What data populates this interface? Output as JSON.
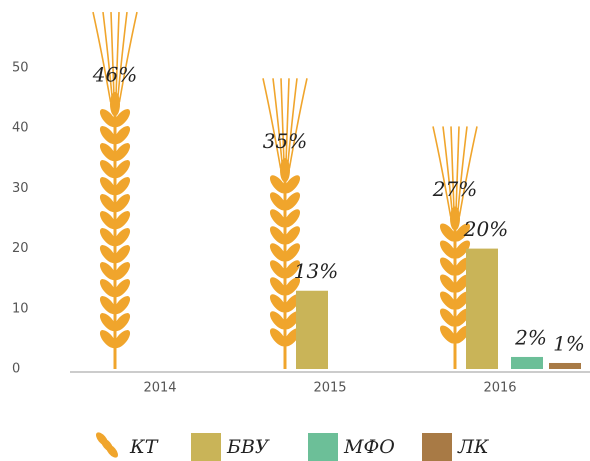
{
  "chart_data": {
    "type": "bar",
    "categories": [
      "2014",
      "2015",
      "2016"
    ],
    "series": [
      {
        "name": "КТ",
        "color": "#f0a52c",
        "values": [
          46,
          35,
          27
        ],
        "value_labels": [
          "46%",
          "35%",
          "27%"
        ]
      },
      {
        "name": "БВУ",
        "color": "#c9b458",
        "values": [
          null,
          13,
          20
        ],
        "value_labels": [
          null,
          "13%",
          "20%"
        ]
      },
      {
        "name": "МФО",
        "color": "#6cbf98",
        "values": [
          null,
          null,
          2
        ],
        "value_labels": [
          null,
          null,
          "2%"
        ]
      },
      {
        "name": "ЛК",
        "color": "#a87a45",
        "values": [
          null,
          null,
          1
        ],
        "value_labels": [
          null,
          null,
          "1%"
        ]
      }
    ],
    "ylim": [
      0,
      55
    ],
    "yticks": [
      0,
      10,
      20,
      30,
      40,
      50
    ],
    "grid": false
  }
}
